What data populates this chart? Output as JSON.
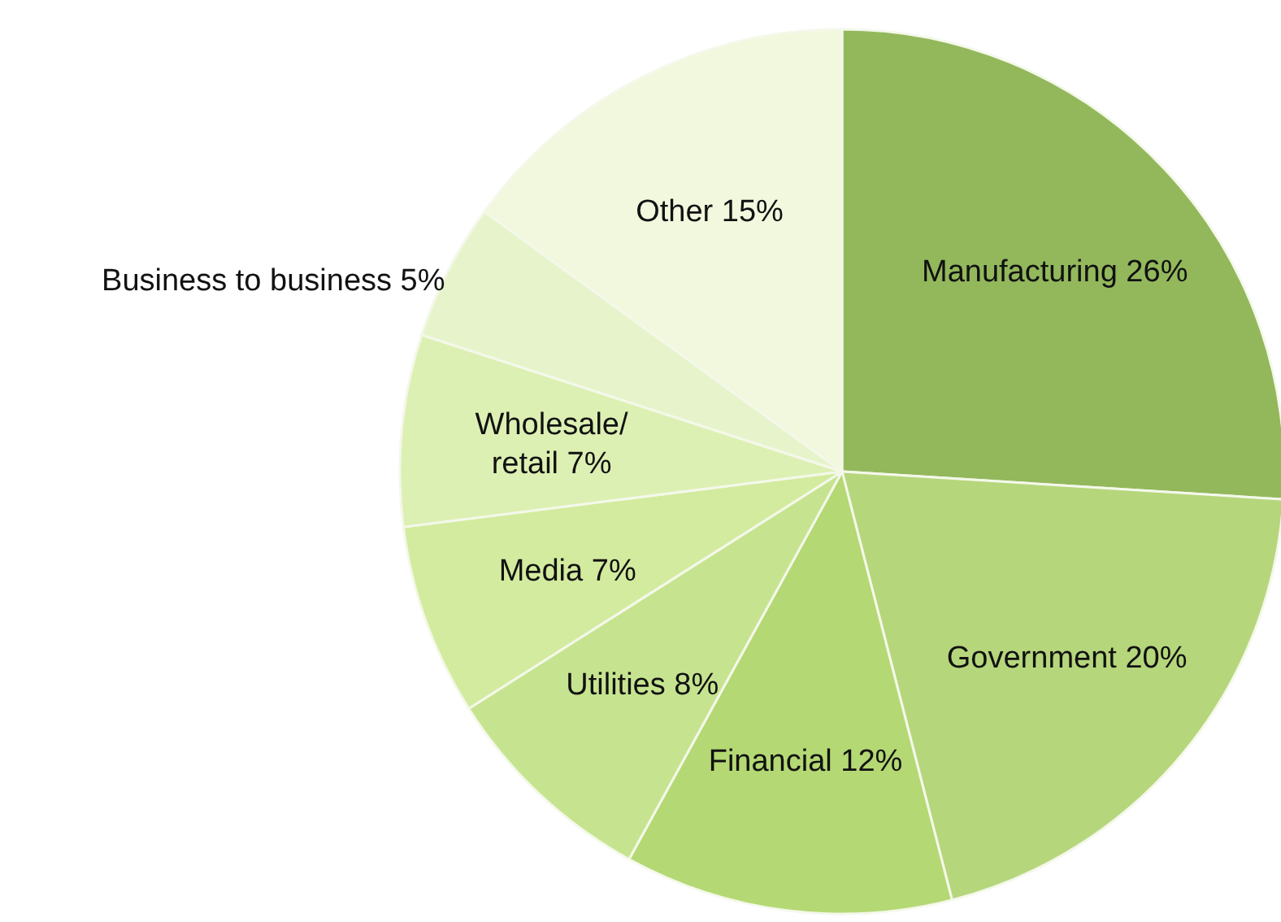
{
  "chart_data": {
    "type": "pie",
    "categories": [
      "Manufacturing",
      "Government",
      "Financial",
      "Utilities",
      "Media",
      "Wholesale/retail",
      "Business to business",
      "Other"
    ],
    "values": [
      26,
      20,
      12,
      8,
      7,
      7,
      5,
      15
    ],
    "value_labels": [
      "26%",
      "20%",
      "12%",
      "8%",
      "7%",
      "7%",
      "5%",
      "15%"
    ],
    "colors": [
      "#93b85c",
      "#b6d67c",
      "#b4d873",
      "#c6e48f",
      "#d3eb9e",
      "#ddf0b3",
      "#e7f4cb",
      "#f2f8de"
    ]
  }
}
